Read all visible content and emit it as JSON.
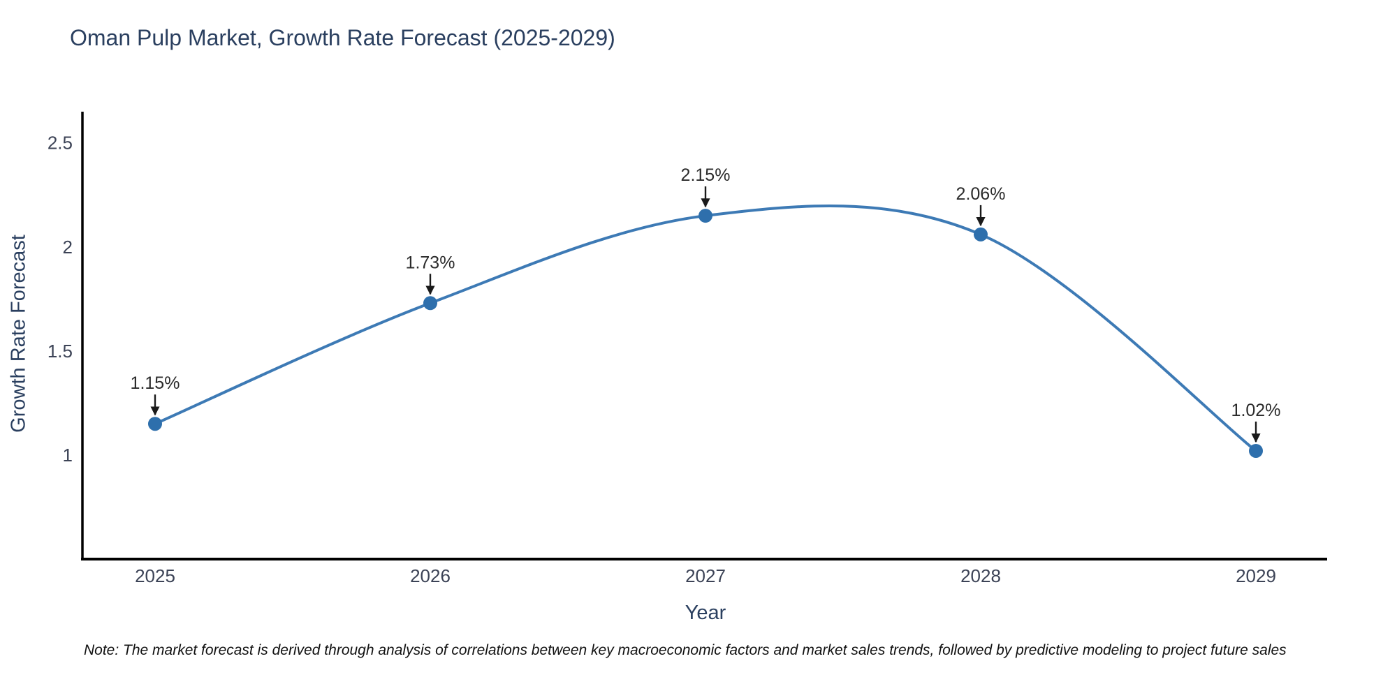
{
  "page": {
    "background": "#ffffff"
  },
  "note": "Note: The market forecast is derived through analysis of correlations between key macroeconomic factors and market sales trends, followed by predictive modeling to project future sales",
  "chart_data": {
    "type": "line",
    "title": "Oman Pulp Market, Growth Rate Forecast (2025-2029)",
    "xlabel": "Year",
    "ylabel": "Growth Rate Forecast",
    "categories": [
      "2025",
      "2026",
      "2027",
      "2028",
      "2029"
    ],
    "values": [
      1.15,
      1.73,
      2.15,
      2.06,
      1.02
    ],
    "point_labels": [
      "1.15%",
      "1.73%",
      "2.15%",
      "2.06%",
      "1.02%"
    ],
    "ytick_labels": [
      "1",
      "1.5",
      "2",
      "2.5"
    ],
    "ytick_values": [
      1,
      1.5,
      2,
      2.5
    ],
    "ylim": [
      0.5,
      2.65
    ],
    "grid": false,
    "legend": "none",
    "line_shape": "spline",
    "annotation_style": "value label above each point with black down arrow to marker",
    "colors": {
      "line": "#3d7ab5",
      "marker": "#2e6fac",
      "axis": "#000000",
      "title_text": "#2a3f5f",
      "tick_text": "#3c4356",
      "annotation_text": "#2b2b2b",
      "note_text": "#111111"
    }
  }
}
